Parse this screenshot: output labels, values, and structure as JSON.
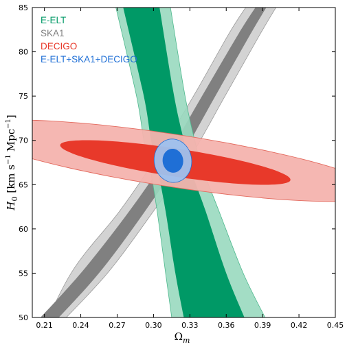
{
  "chart_data": {
    "type": "contour",
    "xlabel": "Ω",
    "xlabel_sub": "m",
    "ylabel_main": "H",
    "ylabel_sub": "0",
    "ylabel_units": "[km s",
    "ylabel_exp": "−1",
    "ylabel_units2": "Mpc",
    "ylabel_exp2": "−1",
    "ylabel_close": "]",
    "xlim": [
      0.2,
      0.45
    ],
    "ylim": [
      50,
      85
    ],
    "xticks": [
      "0.21",
      "0.24",
      "0.27",
      "0.30",
      "0.33",
      "0.36",
      "0.39",
      "0.42",
      "0.45"
    ],
    "yticks": [
      "50",
      "55",
      "60",
      "65",
      "70",
      "75",
      "80",
      "85"
    ],
    "legend_position": "top-left",
    "series": [
      {
        "name": "E-ELT",
        "color": "#009966",
        "shape": "band",
        "inner": [
          [
            0.285,
            85
          ],
          [
            0.3,
            75
          ],
          [
            0.307,
            70
          ],
          [
            0.312,
            67
          ],
          [
            0.32,
            62
          ],
          [
            0.332,
            55
          ],
          [
            0.343,
            50
          ]
        ],
        "outer_left": [
          [
            0.275,
            85
          ],
          [
            0.292,
            75
          ],
          [
            0.298,
            70
          ],
          [
            0.303,
            67
          ],
          [
            0.31,
            62
          ],
          [
            0.318,
            55
          ],
          [
            0.325,
            50
          ]
        ],
        "outer_right": [
          [
            0.305,
            85
          ],
          [
            0.317,
            75
          ],
          [
            0.325,
            70
          ],
          [
            0.33,
            67
          ],
          [
            0.343,
            62
          ],
          [
            0.36,
            55
          ],
          [
            0.375,
            50
          ]
        ],
        "band2_left": [
          [
            0.269,
            85
          ],
          [
            0.286,
            75
          ],
          [
            0.292,
            70
          ],
          [
            0.297,
            67
          ],
          [
            0.303,
            62
          ],
          [
            0.31,
            55
          ],
          [
            0.315,
            50
          ]
        ],
        "band2_right": [
          [
            0.314,
            85
          ],
          [
            0.326,
            75
          ],
          [
            0.334,
            70
          ],
          [
            0.34,
            67
          ],
          [
            0.354,
            62
          ],
          [
            0.374,
            55
          ],
          [
            0.392,
            50
          ]
        ]
      },
      {
        "name": "SKA1",
        "color": "#808080",
        "shape": "band",
        "inner_left": [
          [
            0.2,
            49
          ],
          [
            0.24,
            55
          ],
          [
            0.28,
            62
          ],
          [
            0.31,
            68
          ],
          [
            0.34,
            75
          ],
          [
            0.37,
            82
          ],
          [
            0.384,
            85
          ]
        ],
        "inner_right": [
          [
            0.215,
            49
          ],
          [
            0.255,
            55
          ],
          [
            0.293,
            62
          ],
          [
            0.322,
            68
          ],
          [
            0.351,
            75
          ],
          [
            0.38,
            82
          ],
          [
            0.393,
            85
          ]
        ],
        "outer_left": [
          [
            0.2,
            46
          ],
          [
            0.232,
            55
          ],
          [
            0.272,
            62
          ],
          [
            0.302,
            68
          ],
          [
            0.333,
            75
          ],
          [
            0.362,
            82
          ],
          [
            0.376,
            85
          ]
        ],
        "outer_right": [
          [
            0.221,
            49
          ],
          [
            0.262,
            55
          ],
          [
            0.3,
            62
          ],
          [
            0.33,
            68
          ],
          [
            0.359,
            75
          ],
          [
            0.388,
            82
          ],
          [
            0.401,
            85
          ]
        ]
      },
      {
        "name": "DECIGO",
        "color": "#e8392a",
        "shape": "ellipse",
        "center": [
          0.315,
          67.5
        ],
        "inner_axes": [
          0.095,
          2.3
        ],
        "outer_axes": [
          0.185,
          4.2
        ],
        "angle_deg": -8.4
      },
      {
        "name": "E-ELT+SKA1+DECIGO",
        "color": "#1f6fd6",
        "shape": "ellipse",
        "center": [
          0.316,
          67.7
        ],
        "inner_axes": [
          0.0085,
          1.35
        ],
        "outer_axes": [
          0.0155,
          2.45
        ],
        "angle_deg": 0
      }
    ]
  }
}
